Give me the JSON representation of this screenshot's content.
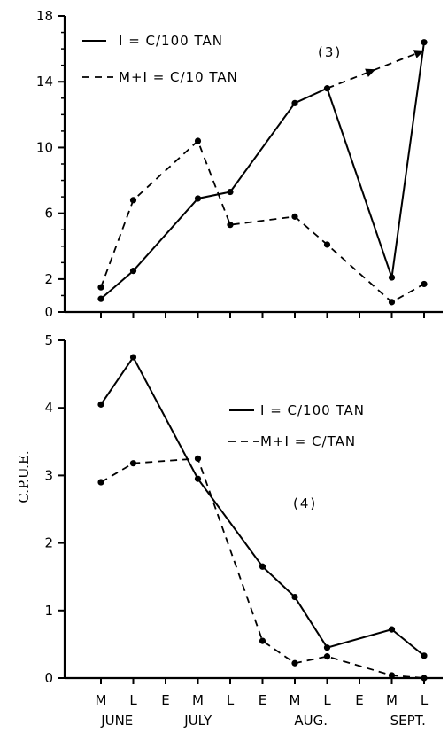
{
  "chart_data": [
    {
      "type": "line",
      "panel_label": "(3)",
      "ylim": [
        0,
        18
      ],
      "yticks": [
        "0",
        "2",
        "6",
        "10",
        "14",
        "18"
      ],
      "ytick_values": [
        0,
        2,
        6,
        10,
        14,
        18
      ],
      "x": [
        "M",
        "L",
        "E",
        "M",
        "L",
        "E",
        "M",
        "L",
        "E",
        "M",
        "L"
      ],
      "series": [
        {
          "name": "I = C/100 TAN",
          "style": "solid",
          "values": [
            0.8,
            2.5,
            null,
            6.9,
            7.3,
            null,
            12.7,
            13.6,
            null,
            2.1,
            16.4
          ]
        },
        {
          "name": "M+I = C/10 TAN",
          "style": "dashed",
          "values": [
            1.5,
            6.8,
            null,
            10.4,
            5.3,
            null,
            5.8,
            4.1,
            null,
            0.6,
            1.7
          ]
        }
      ],
      "annotations": [
        {
          "type": "arrow",
          "series": "M+I = C/10 TAN",
          "from_x_index": 7,
          "from_y": 13.6,
          "to_x_index": 10,
          "to_y": 15.9
        }
      ],
      "grid": false,
      "legend": "top-left"
    },
    {
      "type": "line",
      "panel_label": "(4)",
      "ylabel": "C.P.U.E.",
      "ylim": [
        0,
        5
      ],
      "yticks": [
        "0",
        "1",
        "2",
        "3",
        "4",
        "5"
      ],
      "ytick_values": [
        0,
        1,
        2,
        3,
        4,
        5
      ],
      "x": [
        "M",
        "L",
        "E",
        "M",
        "L",
        "E",
        "M",
        "L",
        "E",
        "M",
        "L"
      ],
      "months": [
        "JUNE",
        "JULY",
        "AUG.",
        "SEPT."
      ],
      "series": [
        {
          "name": "I = C/100 TAN",
          "style": "solid",
          "values": [
            4.05,
            4.75,
            null,
            2.95,
            null,
            1.65,
            1.2,
            0.45,
            null,
            0.72,
            0.33
          ]
        },
        {
          "name": "M+I = C/TAN",
          "style": "dashed",
          "values": [
            2.9,
            3.18,
            null,
            3.25,
            null,
            0.55,
            0.22,
            0.32,
            null,
            0.04,
            0.0
          ]
        }
      ],
      "grid": false,
      "legend": "right"
    }
  ]
}
